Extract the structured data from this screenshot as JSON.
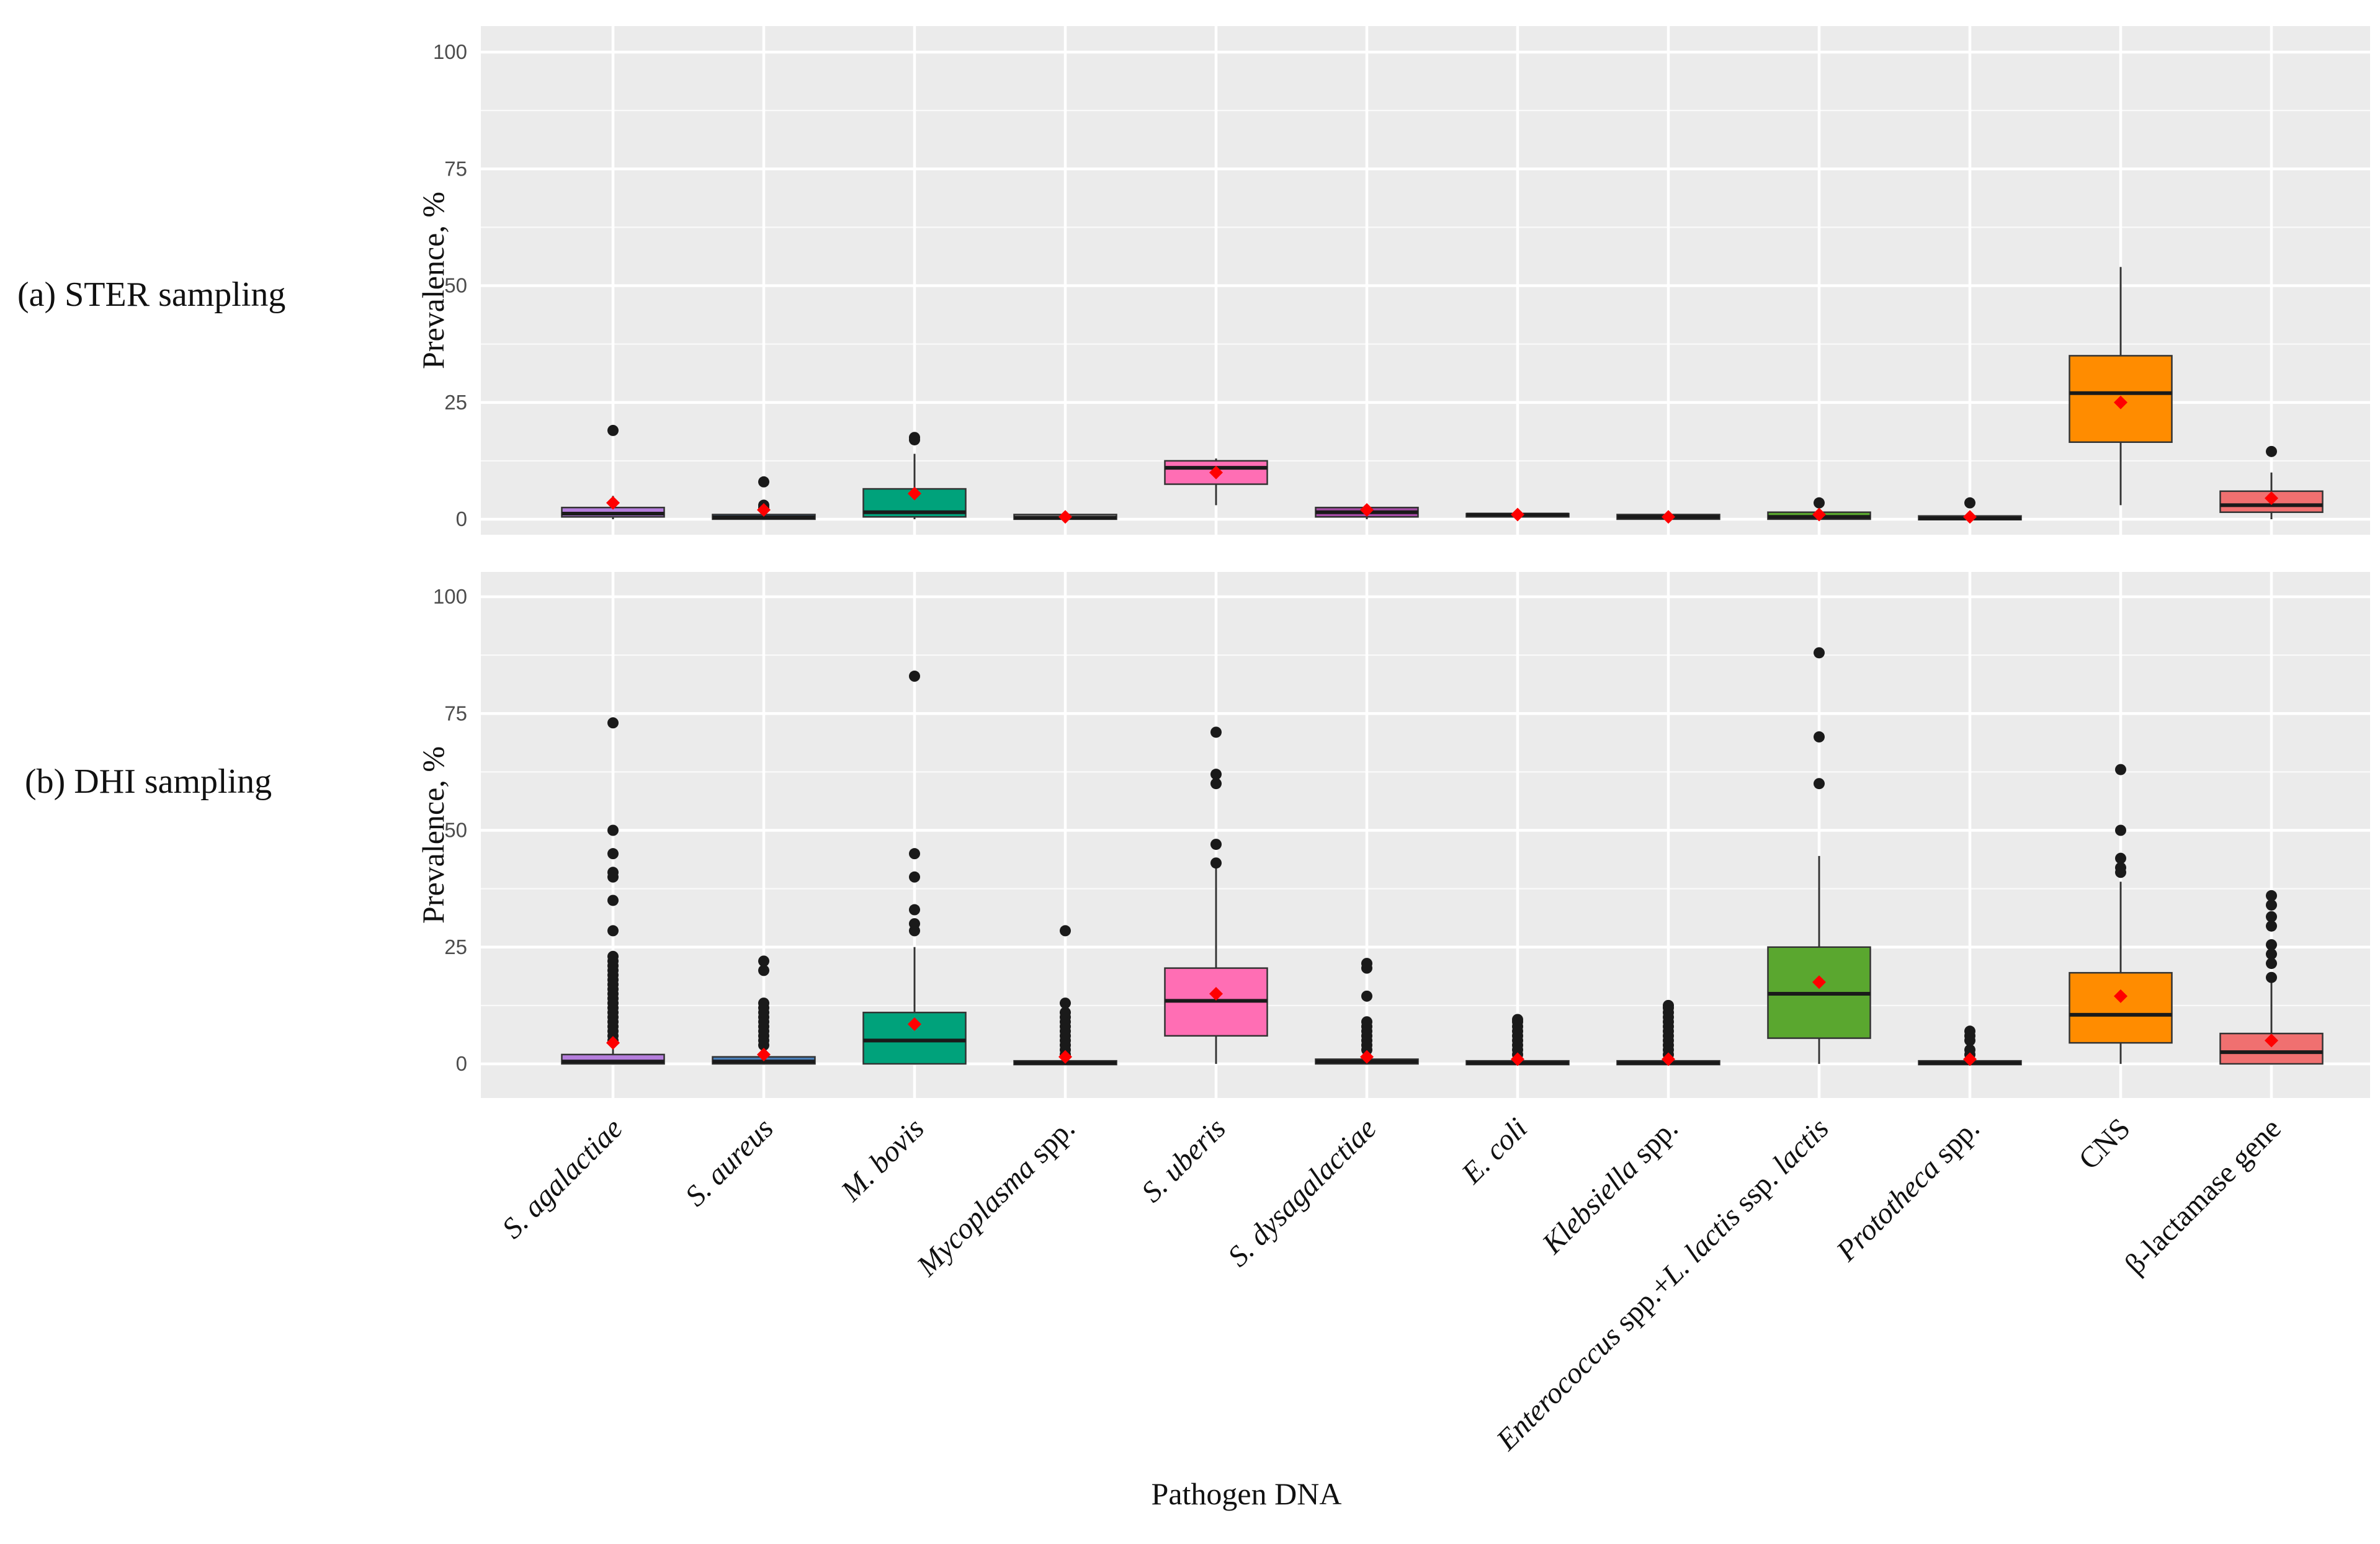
{
  "chart_data": {
    "type": "boxplot",
    "xlabel": "Pathogen DNA",
    "ylabel": "Prevalence, %",
    "ylim": [
      0,
      100
    ],
    "yticks": [
      0,
      25,
      50,
      75,
      100
    ],
    "grid": true,
    "categories": [
      {
        "parts": [
          {
            "t": "S. agalactiae",
            "i": true
          }
        ]
      },
      {
        "parts": [
          {
            "t": "S. aureus",
            "i": true
          }
        ]
      },
      {
        "parts": [
          {
            "t": "M. bovis",
            "i": true
          }
        ]
      },
      {
        "parts": [
          {
            "t": "Mycoplasma",
            "i": true
          },
          {
            "t": " spp.",
            "i": false
          }
        ]
      },
      {
        "parts": [
          {
            "t": "S. uberis",
            "i": true
          }
        ]
      },
      {
        "parts": [
          {
            "t": "S. dysagalactiae",
            "i": true
          }
        ]
      },
      {
        "parts": [
          {
            "t": "E. coli",
            "i": true
          }
        ]
      },
      {
        "parts": [
          {
            "t": "Klebsiella",
            "i": true
          },
          {
            "t": " spp.",
            "i": false
          }
        ]
      },
      {
        "parts": [
          {
            "t": "Enterococcus",
            "i": true
          },
          {
            "t": " spp.+",
            "i": false
          },
          {
            "t": "L. lactis",
            "i": true
          },
          {
            "t": " ssp. ",
            "i": false
          },
          {
            "t": "lactis",
            "i": true
          }
        ]
      },
      {
        "parts": [
          {
            "t": "Prototheca",
            "i": true
          },
          {
            "t": " spp.",
            "i": false
          }
        ]
      },
      {
        "parts": [
          {
            "t": "CNS",
            "i": false
          }
        ]
      },
      {
        "parts": [
          {
            "t": "β-lactamase gene",
            "i": false
          }
        ]
      }
    ],
    "colors": [
      "#b57edc",
      "#4a7fb8",
      "#00a27b",
      "#8a8a8a",
      "#ff6eb4",
      "#a64ca6",
      "#6b6b6b",
      "#3f5f8f",
      "#5aa72f",
      "#8c7650",
      "#ff8c00",
      "#f07070"
    ],
    "panels": [
      {
        "label": "(a) STER sampling",
        "boxes": [
          {
            "q1": 0.5,
            "median": 1.2,
            "q3": 2.5,
            "wlow": 0,
            "whigh": 5,
            "mean": 3.5,
            "outliers": [
              19
            ]
          },
          {
            "q1": 0,
            "median": 0.4,
            "q3": 1,
            "wlow": 0,
            "whigh": 2,
            "mean": 2,
            "outliers": [
              2.5,
              3,
              8
            ]
          },
          {
            "q1": 0.5,
            "median": 1.5,
            "q3": 6.5,
            "wlow": 0,
            "whigh": 14,
            "mean": 5.5,
            "outliers": [
              17,
              17.5
            ]
          },
          {
            "q1": 0,
            "median": 0.3,
            "q3": 1,
            "wlow": 0,
            "whigh": 1,
            "mean": 0.5,
            "outliers": []
          },
          {
            "q1": 7.5,
            "median": 11,
            "q3": 12.5,
            "wlow": 3,
            "whigh": 13,
            "mean": 10,
            "outliers": []
          },
          {
            "q1": 0.5,
            "median": 1.5,
            "q3": 2.5,
            "wlow": 0,
            "whigh": 3,
            "mean": 2,
            "outliers": []
          },
          {
            "q1": 0.5,
            "median": 1,
            "q3": 1.2,
            "wlow": 0.5,
            "whigh": 1.2,
            "mean": 1,
            "outliers": []
          },
          {
            "q1": 0,
            "median": 0.5,
            "q3": 1,
            "wlow": 0,
            "whigh": 1,
            "mean": 0.5,
            "outliers": []
          },
          {
            "q1": 0,
            "median": 0.5,
            "q3": 1.5,
            "wlow": 0,
            "whigh": 2,
            "mean": 1,
            "outliers": [
              3.5
            ]
          },
          {
            "q1": 0,
            "median": 0.2,
            "q3": 0.6,
            "wlow": 0,
            "whigh": 1,
            "mean": 0.5,
            "outliers": [
              3.5
            ]
          },
          {
            "q1": 16.5,
            "median": 27,
            "q3": 35,
            "wlow": 3,
            "whigh": 54,
            "mean": 25,
            "outliers": []
          },
          {
            "q1": 1.5,
            "median": 3,
            "q3": 6,
            "wlow": 0,
            "whigh": 10,
            "mean": 4.5,
            "outliers": [
              14.5
            ]
          }
        ]
      },
      {
        "label": "(b) DHI sampling",
        "boxes": [
          {
            "q1": 0,
            "median": 0.5,
            "q3": 2,
            "wlow": 0,
            "whigh": 4,
            "mean": 4.5,
            "outliers": [
              5,
              6,
              7,
              8,
              9,
              10,
              11,
              12,
              13,
              14,
              15,
              16,
              17,
              18,
              19,
              20,
              21,
              22,
              23,
              28.5,
              35,
              40,
              41,
              45,
              50,
              73
            ]
          },
          {
            "q1": 0,
            "median": 0.5,
            "q3": 1.5,
            "wlow": 0,
            "whigh": 3,
            "mean": 2,
            "outliers": [
              4,
              5,
              6,
              7,
              8,
              9,
              10,
              11,
              12,
              13,
              20,
              22
            ]
          },
          {
            "q1": 0,
            "median": 5,
            "q3": 11,
            "wlow": 0,
            "whigh": 25,
            "mean": 8.5,
            "outliers": [
              28.5,
              30,
              33,
              40,
              45,
              83
            ]
          },
          {
            "q1": 0,
            "median": 0.2,
            "q3": 0.5,
            "wlow": 0,
            "whigh": 1,
            "mean": 1.5,
            "outliers": [
              2,
              3,
              4,
              5,
              6,
              7,
              8,
              9,
              10,
              11,
              13,
              28.5
            ]
          },
          {
            "q1": 6,
            "median": 13.5,
            "q3": 20.5,
            "wlow": 0,
            "whigh": 42,
            "mean": 15,
            "outliers": [
              43,
              47,
              60,
              62,
              71
            ]
          },
          {
            "q1": 0,
            "median": 0.5,
            "q3": 1,
            "wlow": 0,
            "whigh": 2,
            "mean": 1.5,
            "outliers": [
              3,
              4,
              5,
              6,
              7,
              8,
              9,
              14.5,
              20.5,
              21.5
            ]
          },
          {
            "q1": 0,
            "median": 0.2,
            "q3": 0.5,
            "wlow": 0,
            "whigh": 1,
            "mean": 1,
            "outliers": [
              2,
              3,
              4,
              5,
              6,
              7,
              8,
              9,
              9.5
            ]
          },
          {
            "q1": 0,
            "median": 0.2,
            "q3": 0.5,
            "wlow": 0,
            "whigh": 1,
            "mean": 1,
            "outliers": [
              2,
              3,
              4,
              5,
              6,
              7,
              8,
              9,
              10,
              11,
              12,
              12.5
            ]
          },
          {
            "q1": 5.5,
            "median": 15,
            "q3": 25,
            "wlow": 0,
            "whigh": 44.5,
            "mean": 17.5,
            "outliers": [
              60,
              70,
              88
            ]
          },
          {
            "q1": 0,
            "median": 0.2,
            "q3": 0.5,
            "wlow": 0,
            "whigh": 1,
            "mean": 1,
            "outliers": [
              2,
              3,
              5,
              6,
              7
            ]
          },
          {
            "q1": 4.5,
            "median": 10.5,
            "q3": 19.5,
            "wlow": 0,
            "whigh": 39,
            "mean": 14.5,
            "outliers": [
              41,
              42,
              44,
              50,
              63
            ]
          },
          {
            "q1": 0,
            "median": 2.5,
            "q3": 6.5,
            "wlow": 0,
            "whigh": 17.5,
            "mean": 5,
            "outliers": [
              18.5,
              21.5,
              23.5,
              25.5,
              29.5,
              31.5,
              34,
              36
            ]
          }
        ]
      }
    ]
  }
}
